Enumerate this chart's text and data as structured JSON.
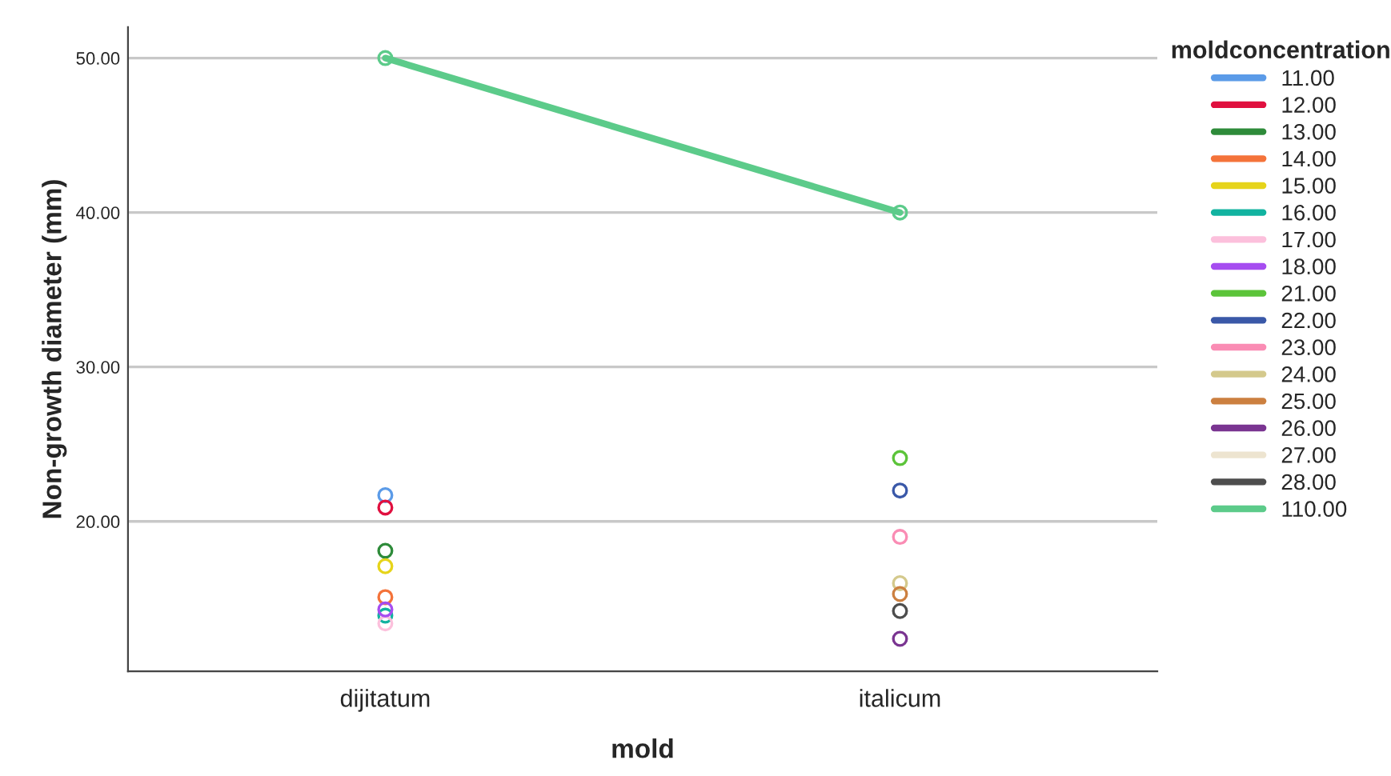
{
  "chart_data": {
    "type": "line",
    "xlabel": "mold",
    "ylabel": "Non-growth diameter (mm)",
    "legend_title": "moldconcentration",
    "categories": [
      "dijitatum",
      "italicum"
    ],
    "ylim": [
      10.3,
      52
    ],
    "yticks": [
      {
        "value": 20,
        "label": "20.00"
      },
      {
        "value": 30,
        "label": "30.00"
      },
      {
        "value": 40,
        "label": "40.00"
      },
      {
        "value": 50,
        "label": "50.00"
      }
    ],
    "grid": "y",
    "legend": "right",
    "marker": "circle",
    "line_style": "solid",
    "series": [
      {
        "name": "11.00",
        "color": "#5b9be8",
        "values": [
          21.7,
          null
        ]
      },
      {
        "name": "12.00",
        "color": "#e0103f",
        "values": [
          20.9,
          null
        ]
      },
      {
        "name": "13.00",
        "color": "#2e8b3a",
        "values": [
          18.1,
          null
        ]
      },
      {
        "name": "14.00",
        "color": "#f4733a",
        "values": [
          15.1,
          null
        ]
      },
      {
        "name": "15.00",
        "color": "#e6d41a",
        "values": [
          17.1,
          null
        ]
      },
      {
        "name": "16.00",
        "color": "#12b3a0",
        "values": [
          13.9,
          null
        ]
      },
      {
        "name": "17.00",
        "color": "#fcc0dc",
        "values": [
          13.4,
          null
        ]
      },
      {
        "name": "18.00",
        "color": "#a64df0",
        "values": [
          14.3,
          null
        ]
      },
      {
        "name": "21.00",
        "color": "#5cc43a",
        "values": [
          null,
          24.1
        ]
      },
      {
        "name": "22.00",
        "color": "#3a58a8",
        "values": [
          null,
          22.0
        ]
      },
      {
        "name": "23.00",
        "color": "#fa8cb4",
        "values": [
          null,
          19.0
        ]
      },
      {
        "name": "24.00",
        "color": "#d4c98c",
        "values": [
          null,
          16.0
        ]
      },
      {
        "name": "25.00",
        "color": "#cc8040",
        "values": [
          null,
          15.3
        ]
      },
      {
        "name": "26.00",
        "color": "#7a3591",
        "values": [
          null,
          12.4
        ]
      },
      {
        "name": "27.00",
        "color": "#ede4d0",
        "values": [
          null,
          null
        ]
      },
      {
        "name": "28.00",
        "color": "#4d4d4d",
        "values": [
          null,
          14.2
        ]
      },
      {
        "name": "110.00",
        "color": "#5ccb8a",
        "values": [
          50,
          40
        ]
      }
    ]
  }
}
